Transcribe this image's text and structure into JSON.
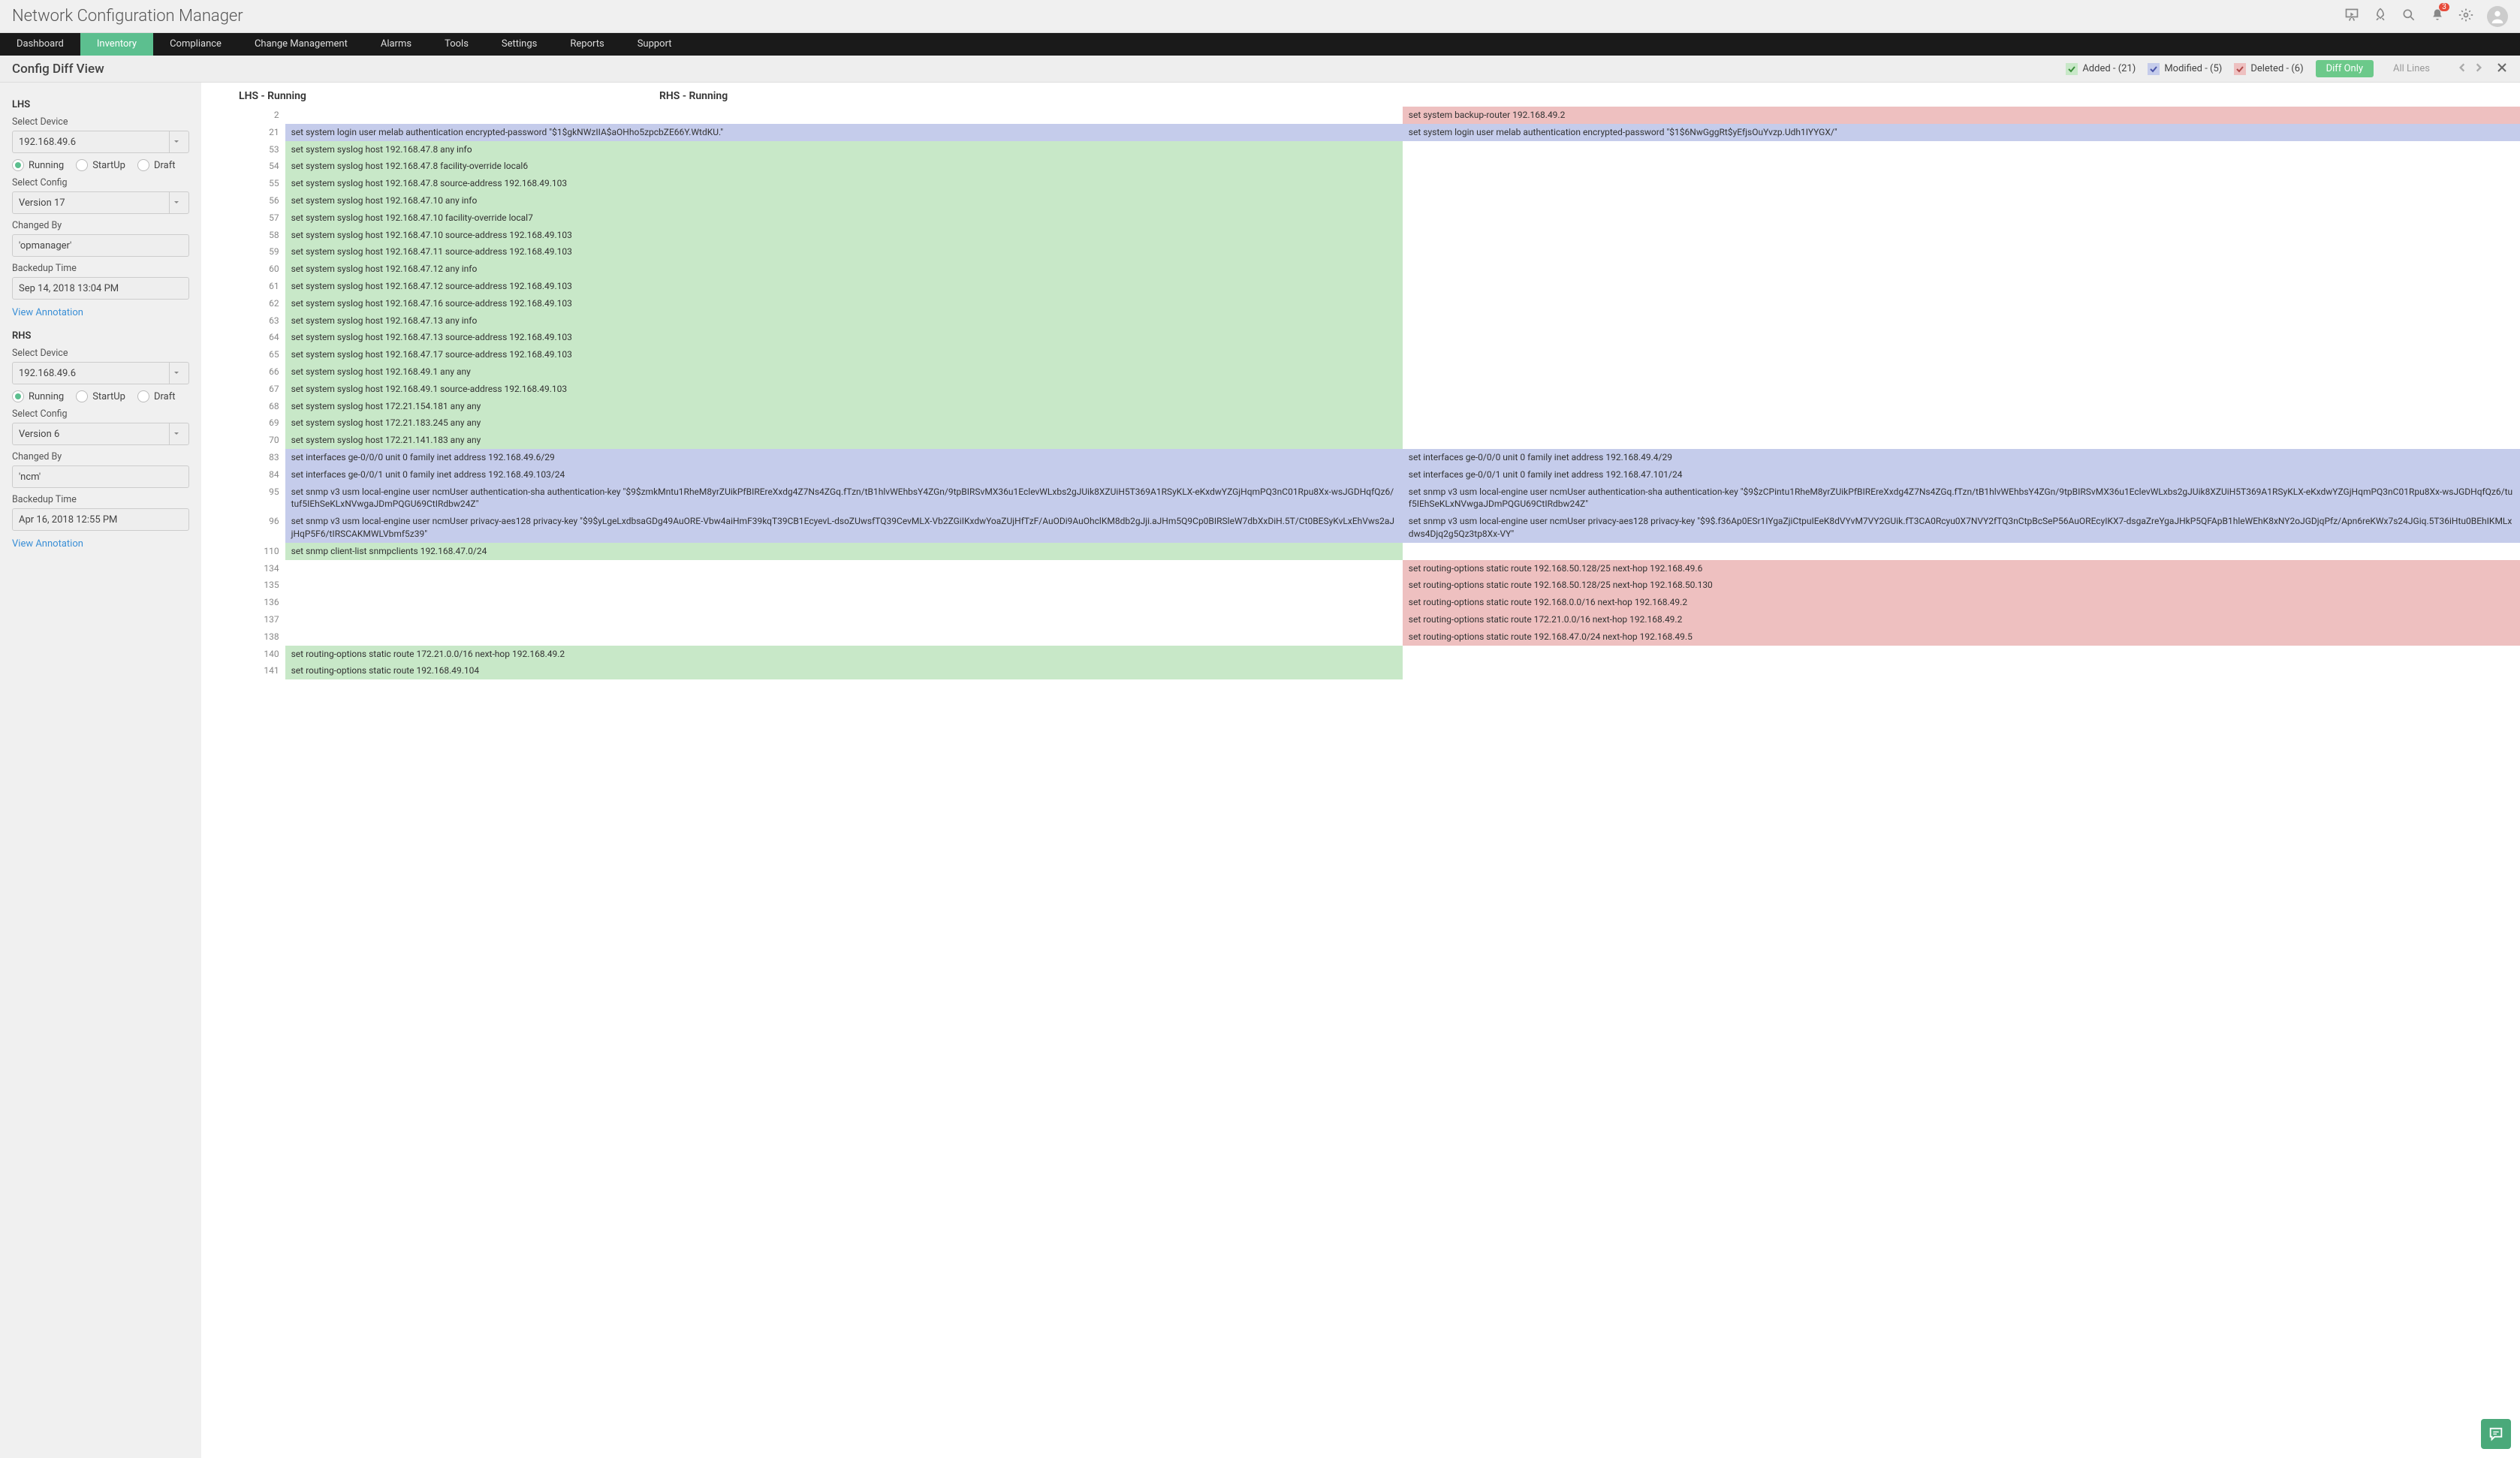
{
  "app_title": "Network Configuration Manager",
  "notification_count": "3",
  "nav": [
    "Dashboard",
    "Inventory",
    "Compliance",
    "Change Management",
    "Alarms",
    "Tools",
    "Settings",
    "Reports",
    "Support"
  ],
  "nav_active": 1,
  "page_title": "Config Diff View",
  "legend": {
    "added": "Added - (21)",
    "modified": "Modified - (5)",
    "deleted": "Deleted - (6)"
  },
  "buttons": {
    "diff_only": "Diff Only",
    "all_lines": "All Lines"
  },
  "colors": {
    "added_bg": "#c8e8c8",
    "modified_bg": "#c5cceb",
    "deleted_bg": "#eec0c0",
    "nav_active_bg": "#5cbf8f",
    "btn_green": "#6cc98a",
    "link": "#3a8fd6",
    "check_add": "#3b8f3b",
    "check_mod": "#4a54a8",
    "check_del": "#b04a4a"
  },
  "sidebar": {
    "lhs": {
      "title": "LHS",
      "select_device_label": "Select Device",
      "select_device_value": "192.168.49.6",
      "radios": [
        "Running",
        "StartUp",
        "Draft"
      ],
      "radio_selected": 0,
      "select_config_label": "Select Config",
      "select_config_value": "Version 17",
      "changed_by_label": "Changed By",
      "changed_by_value": "'opmanager'",
      "backedup_label": "Backedup Time",
      "backedup_value": "Sep 14, 2018 13:04 PM",
      "view_link": "View Annotation"
    },
    "rhs": {
      "title": "RHS",
      "select_device_label": "Select Device",
      "select_device_value": "192.168.49.6",
      "radios": [
        "Running",
        "StartUp",
        "Draft"
      ],
      "radio_selected": 0,
      "select_config_label": "Select Config",
      "select_config_value": "Version 6",
      "changed_by_label": "Changed By",
      "changed_by_value": "'ncm'",
      "backedup_label": "Backedup Time",
      "backedup_value": "Apr 16, 2018 12:55 PM",
      "view_link": "View Annotation"
    }
  },
  "diff_headers": {
    "lhs": "LHS - Running",
    "rhs": "RHS - Running"
  },
  "diff_rows": [
    {
      "ln": "2",
      "lhs": "",
      "lhs_cls": "blank",
      "rhs": "set system backup-router 192.168.49.2",
      "rhs_cls": "deleted"
    },
    {
      "ln": "21",
      "lhs": "set system login user melab authentication encrypted-password \"$1$gkNWzIIA$aOHho5zpcbZE66Y.WtdKU.\"",
      "lhs_cls": "modified",
      "rhs": "set system login user melab authentication encrypted-password \"$1$6NwGggRt$yEfjsOuYvzp.Udh1IYYGX/\"",
      "rhs_cls": "modified"
    },
    {
      "ln": "53",
      "lhs": "set system syslog host 192.168.47.8 any info",
      "lhs_cls": "added",
      "rhs": "",
      "rhs_cls": "blank"
    },
    {
      "ln": "54",
      "lhs": "set system syslog host 192.168.47.8 facility-override local6",
      "lhs_cls": "added",
      "rhs": "",
      "rhs_cls": "blank"
    },
    {
      "ln": "55",
      "lhs": "set system syslog host 192.168.47.8 source-address 192.168.49.103",
      "lhs_cls": "added",
      "rhs": "",
      "rhs_cls": "blank"
    },
    {
      "ln": "56",
      "lhs": "set system syslog host 192.168.47.10 any info",
      "lhs_cls": "added",
      "rhs": "",
      "rhs_cls": "blank"
    },
    {
      "ln": "57",
      "lhs": "set system syslog host 192.168.47.10 facility-override local7",
      "lhs_cls": "added",
      "rhs": "",
      "rhs_cls": "blank"
    },
    {
      "ln": "58",
      "lhs": "set system syslog host 192.168.47.10 source-address 192.168.49.103",
      "lhs_cls": "added",
      "rhs": "",
      "rhs_cls": "blank"
    },
    {
      "ln": "59",
      "lhs": "set system syslog host 192.168.47.11 source-address 192.168.49.103",
      "lhs_cls": "added",
      "rhs": "",
      "rhs_cls": "blank"
    },
    {
      "ln": "60",
      "lhs": "set system syslog host 192.168.47.12 any info",
      "lhs_cls": "added",
      "rhs": "",
      "rhs_cls": "blank"
    },
    {
      "ln": "61",
      "lhs": "set system syslog host 192.168.47.12 source-address 192.168.49.103",
      "lhs_cls": "added",
      "rhs": "",
      "rhs_cls": "blank"
    },
    {
      "ln": "62",
      "lhs": "set system syslog host 192.168.47.16 source-address 192.168.49.103",
      "lhs_cls": "added",
      "rhs": "",
      "rhs_cls": "blank"
    },
    {
      "ln": "63",
      "lhs": "set system syslog host 192.168.47.13 any info",
      "lhs_cls": "added",
      "rhs": "",
      "rhs_cls": "blank"
    },
    {
      "ln": "64",
      "lhs": "set system syslog host 192.168.47.13 source-address 192.168.49.103",
      "lhs_cls": "added",
      "rhs": "",
      "rhs_cls": "blank"
    },
    {
      "ln": "65",
      "lhs": "set system syslog host 192.168.47.17 source-address 192.168.49.103",
      "lhs_cls": "added",
      "rhs": "",
      "rhs_cls": "blank"
    },
    {
      "ln": "66",
      "lhs": "set system syslog host 192.168.49.1 any any",
      "lhs_cls": "added",
      "rhs": "",
      "rhs_cls": "blank"
    },
    {
      "ln": "67",
      "lhs": "set system syslog host 192.168.49.1 source-address 192.168.49.103",
      "lhs_cls": "added",
      "rhs": "",
      "rhs_cls": "blank"
    },
    {
      "ln": "68",
      "lhs": "set system syslog host 172.21.154.181 any any",
      "lhs_cls": "added",
      "rhs": "",
      "rhs_cls": "blank"
    },
    {
      "ln": "69",
      "lhs": "set system syslog host 172.21.183.245 any any",
      "lhs_cls": "added",
      "rhs": "",
      "rhs_cls": "blank"
    },
    {
      "ln": "70",
      "lhs": "set system syslog host 172.21.141.183 any any",
      "lhs_cls": "added",
      "rhs": "",
      "rhs_cls": "blank"
    },
    {
      "ln": "83",
      "lhs": "set interfaces ge-0/0/0 unit 0 family inet address 192.168.49.6/29",
      "lhs_cls": "modified",
      "rhs": "set interfaces ge-0/0/0 unit 0 family inet address 192.168.49.4/29",
      "rhs_cls": "modified"
    },
    {
      "ln": "84",
      "lhs": "set interfaces ge-0/0/1 unit 0 family inet address 192.168.49.103/24",
      "lhs_cls": "modified",
      "rhs": "set interfaces ge-0/0/1 unit 0 family inet address 192.168.47.101/24",
      "rhs_cls": "modified"
    },
    {
      "ln": "95",
      "lhs": "set snmp v3 usm local-engine user ncmUser authentication-sha authentication-key \"$9$zmkMntu1RheM8yrZUikPfBIREreXxdg4Z7Ns4ZGq.fTzn/tB1hlvWEhbsY4ZGn/9tpBIRSvMX36u1EclevWLxbs2gJUik8XZUiH5T369A1RSyKLX-eKxdwYZGjHqmPQ3nC01Rpu8Xx-wsJGDHqfQz6/tuf5IEhSeKLxNVwgaJDmPQGU69CtIRdbw24Z\"",
      "lhs_cls": "modified",
      "rhs": "set snmp v3 usm local-engine user ncmUser authentication-sha authentication-key \"$9$zCPintu1RheM8yrZUikPfBIREreXxdg4Z7Ns4ZGq.fTzn/tB1hlvWEhbsY4ZGn/9tpBIRSvMX36u1EclevWLxbs2gJUik8XZUiH5T369A1RSyKLX-eKxdwYZGjHqmPQ3nC01Rpu8Xx-wsJGDHqfQz6/tuf5IEhSeKLxNVwgaJDmPQGU69CtIRdbw24Z\"",
      "rhs_cls": "modified"
    },
    {
      "ln": "96",
      "lhs": "set snmp v3 usm local-engine user ncmUser privacy-aes128 privacy-key \"$9$yLgeLxdbsaGDg49AuORE-Vbw4aiHmF39kqT39CB1EcyevL-dsoZUwsfTQ39CevMLX-Vb2ZGiIKxdwYoaZUjHfTzF/AuODi9AuOhclKM8db2gJji.aJHm5Q9Cp0BIRSleW7dbXxDiH.5T/Ct0BESyKvLxEhVws2aJjHqP5F6/tIRSCAKMWLVbmf5z39\"",
      "lhs_cls": "modified",
      "rhs": "set snmp v3 usm local-engine user ncmUser privacy-aes128 privacy-key \"$9$.f36Ap0ESr1IYgaZjiCtpuIEeK8dVYvM7VY2GUik.fT3CA0Rcyu0X7NVY2fTQ3nCtpBcSeP56AuOREcyIKX7-dsgaZreYgaJHkP5QFApB1hleWEhK8xNY2oJGDjqPfz/Apn6reKWx7s24JGiq.5T36iHtu0BEhIKMLxdws4Djq2g5Qz3tp8Xx-VY\"",
      "rhs_cls": "modified"
    },
    {
      "ln": "110",
      "lhs": "set snmp client-list snmpclients 192.168.47.0/24",
      "lhs_cls": "added",
      "rhs": "",
      "rhs_cls": "blank"
    },
    {
      "ln": "134",
      "lhs": "",
      "lhs_cls": "blank",
      "rhs": "set routing-options static route 192.168.50.128/25 next-hop 192.168.49.6",
      "rhs_cls": "deleted"
    },
    {
      "ln": "135",
      "lhs": "",
      "lhs_cls": "blank",
      "rhs": "set routing-options static route 192.168.50.128/25 next-hop 192.168.50.130",
      "rhs_cls": "deleted"
    },
    {
      "ln": "136",
      "lhs": "",
      "lhs_cls": "blank",
      "rhs": "set routing-options static route 192.168.0.0/16 next-hop 192.168.49.2",
      "rhs_cls": "deleted"
    },
    {
      "ln": "137",
      "lhs": "",
      "lhs_cls": "blank",
      "rhs": "set routing-options static route 172.21.0.0/16 next-hop 192.168.49.2",
      "rhs_cls": "deleted"
    },
    {
      "ln": "138",
      "lhs": "",
      "lhs_cls": "blank",
      "rhs": "set routing-options static route 192.168.47.0/24 next-hop 192.168.49.5",
      "rhs_cls": "deleted"
    },
    {
      "ln": "140",
      "lhs": "set routing-options static route 172.21.0.0/16 next-hop 192.168.49.2",
      "lhs_cls": "added",
      "rhs": "",
      "rhs_cls": "blank"
    },
    {
      "ln": "141",
      "lhs": "set routing-options static route 192.168.49.104",
      "lhs_cls": "added",
      "rhs": "",
      "rhs_cls": "blank"
    }
  ]
}
